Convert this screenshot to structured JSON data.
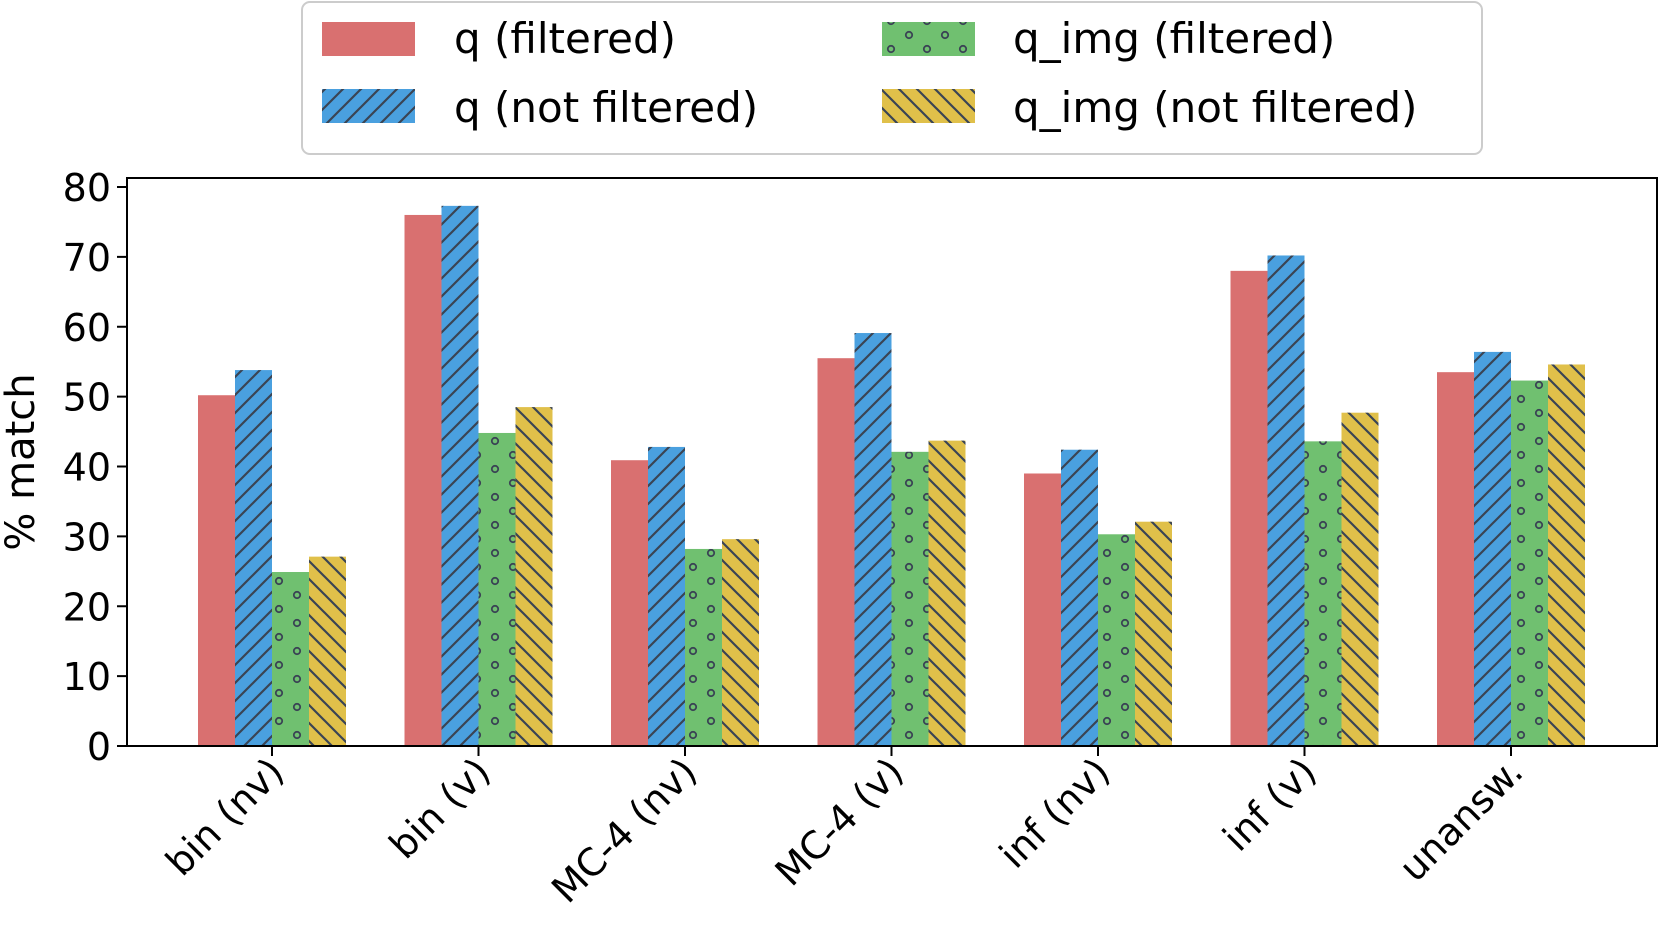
{
  "chart_data": {
    "type": "bar",
    "title": "",
    "xlabel": "",
    "ylabel": "% match",
    "ylim": [
      0,
      81
    ],
    "yticks": [
      0,
      10,
      20,
      30,
      40,
      50,
      60,
      70,
      80
    ],
    "grid": false,
    "legend_position": "top-center",
    "categories": [
      "bin (nv)",
      "bin (v)",
      "MC-4 (nv)",
      "MC-4 (v)",
      "inf (nv)",
      "inf (v)",
      "unansw."
    ],
    "series": [
      {
        "name": "q (filtered)",
        "color": "#d97070",
        "pattern": "none",
        "values": [
          50.2,
          76.0,
          40.9,
          55.5,
          39.0,
          68.0,
          53.5
        ]
      },
      {
        "name": "q (not filtered)",
        "color": "#4aa0df",
        "pattern": "forward-diagonal",
        "values": [
          53.8,
          77.3,
          42.8,
          59.1,
          42.4,
          70.2,
          56.4
        ]
      },
      {
        "name": "q_img (filtered)",
        "color": "#70c070",
        "pattern": "small-circles",
        "values": [
          24.9,
          44.8,
          28.2,
          42.1,
          30.3,
          43.6,
          52.3
        ]
      },
      {
        "name": "q_img (not filtered)",
        "color": "#e0c04a",
        "pattern": "back-diagonal",
        "values": [
          27.1,
          48.5,
          29.6,
          43.7,
          32.1,
          47.7,
          54.6
        ]
      }
    ]
  }
}
